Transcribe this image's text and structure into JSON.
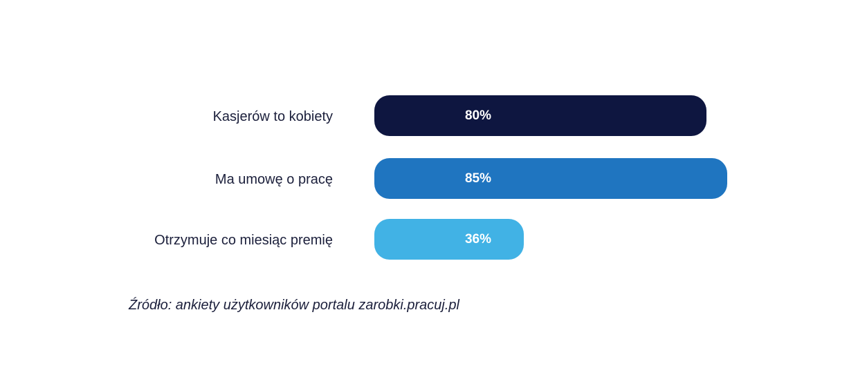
{
  "chart_data": {
    "type": "bar",
    "orientation": "horizontal",
    "categories": [
      "Kasjerów to kobiety",
      "Ma umowę o pracę",
      "Otrzymuje co miesiąc premię"
    ],
    "values": [
      80,
      85,
      36
    ],
    "value_labels": [
      "80%",
      "85%",
      "36%"
    ],
    "colors": [
      "#0e1640",
      "#1f75c0",
      "#41b2e5"
    ],
    "unit": "%",
    "xlim": [
      0,
      100
    ]
  },
  "source_text": "Źródło: ankiety użytkowników portalu zarobki.pracuj.pl"
}
